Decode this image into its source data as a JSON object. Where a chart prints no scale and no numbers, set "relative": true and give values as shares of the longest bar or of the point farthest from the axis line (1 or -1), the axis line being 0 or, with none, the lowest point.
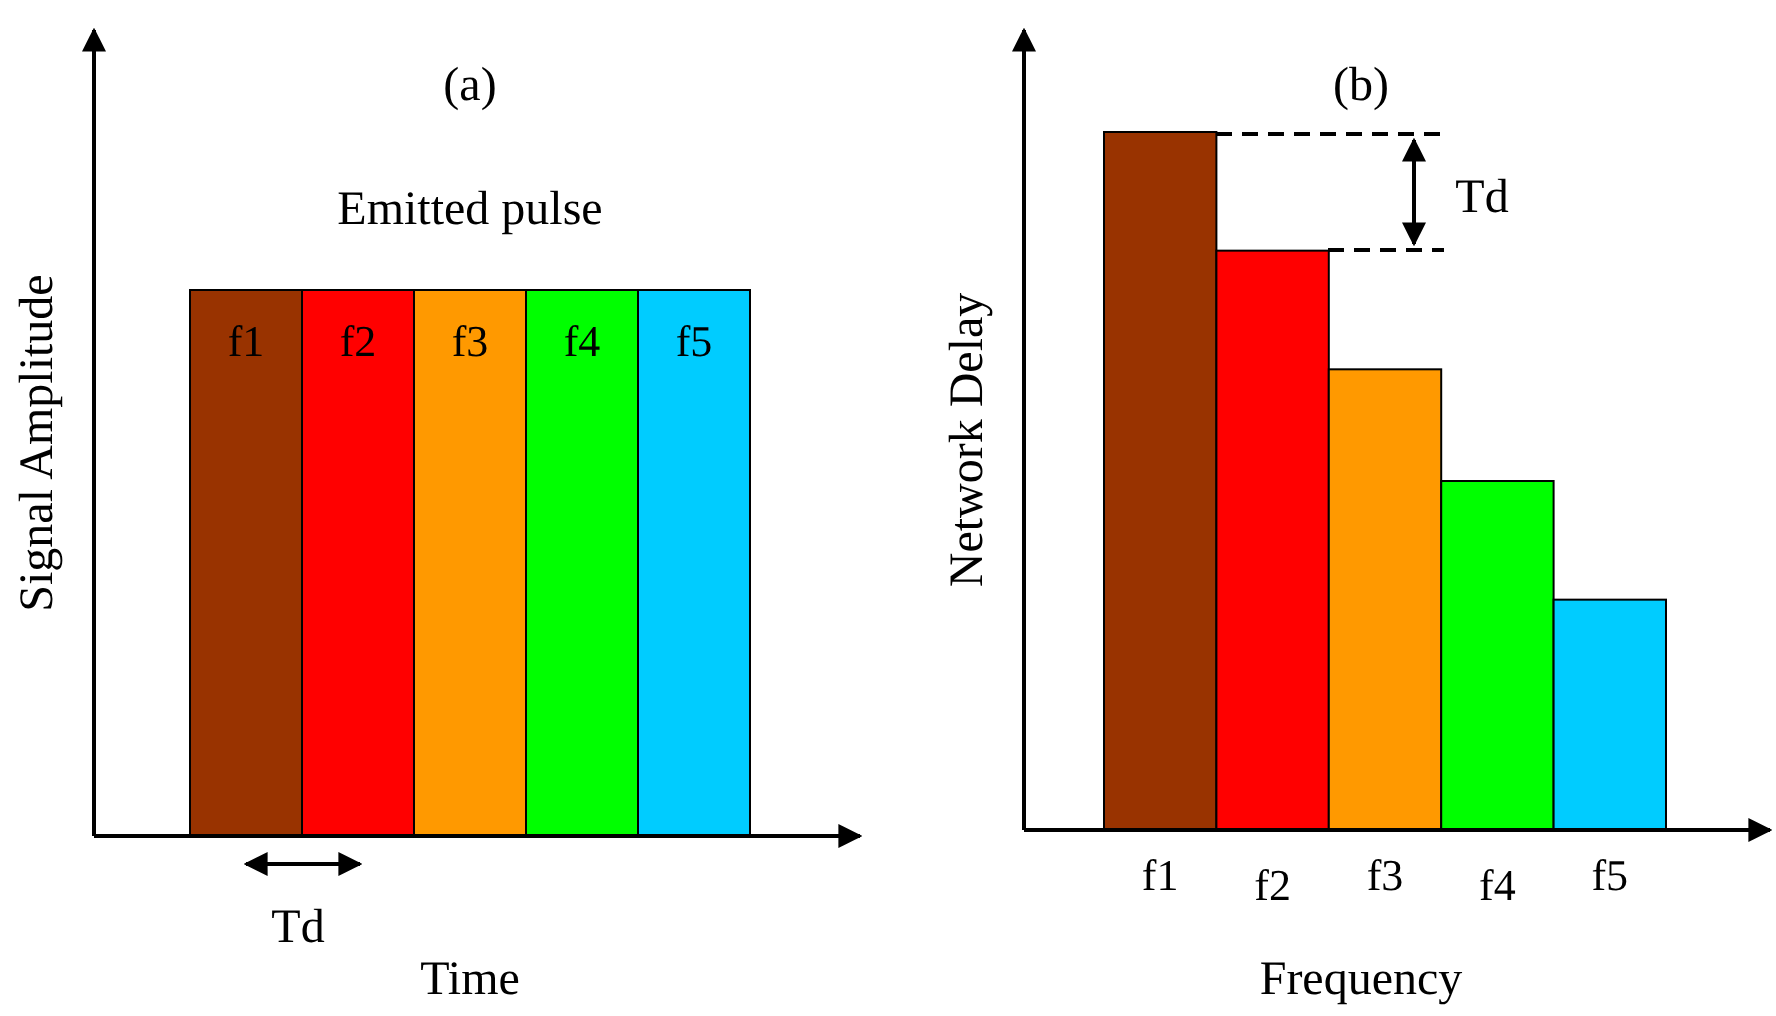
{
  "chart_data": [
    {
      "type": "bar",
      "title": "(a)",
      "xlabel": "Time",
      "ylabel": "Signal Amplitude",
      "relative": true,
      "categories": [
        "f1",
        "f2",
        "f3",
        "f4",
        "f5"
      ],
      "values": [
        1,
        1,
        1,
        1,
        1
      ],
      "colors": [
        "#993300",
        "#ff0000",
        "#ff9900",
        "#00ff00",
        "#00ccff"
      ],
      "annotations": [
        "Emitted pulse",
        "Td"
      ]
    },
    {
      "type": "bar",
      "title": "(b)",
      "xlabel": "Frequency",
      "ylabel": "Network Delay",
      "relative": true,
      "categories": [
        "f1",
        "f2",
        "f3",
        "f4",
        "f5"
      ],
      "values": [
        1,
        0.83,
        0.66,
        0.5,
        0.33
      ],
      "colors": [
        "#993300",
        "#ff0000",
        "#ff9900",
        "#00ff00",
        "#00ccff"
      ],
      "annotations": [
        "Td"
      ]
    }
  ]
}
